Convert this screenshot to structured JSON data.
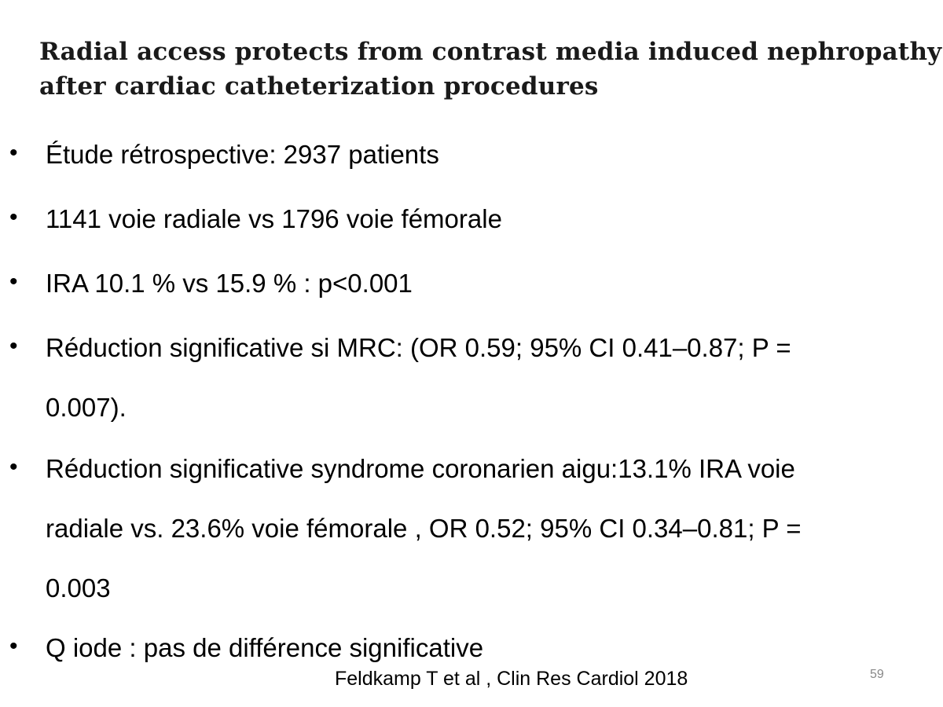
{
  "slide": {
    "title_lines": [
      "Radial access protects from contrast media induced nephropathy",
      "after cardiac catheterization procedures"
    ],
    "bullet_symbol": "•",
    "bullets": [
      {
        "lines": [
          "Étude rétrospective: 2937 patients"
        ]
      },
      {
        "lines": [
          "1141 voie radiale vs 1796 voie fémorale"
        ]
      },
      {
        "lines": [
          "IRA 10.1 % vs 15.9 % : p<0.001"
        ]
      },
      {
        "lines": [
          "Réduction significative si MRC: (OR 0.59; 95% CI 0.41–0.87; P =",
          "0.007)."
        ]
      },
      {
        "lines": [
          "Réduction significative syndrome coronarien aigu:13.1% IRA  voie",
          "radiale  vs. 23.6%  voie  fémorale , OR 0.52; 95% CI 0.34–0.81; P =",
          "0.003"
        ]
      },
      {
        "lines": [
          "Q iode : pas de différence significative"
        ]
      }
    ],
    "citation": "Feldkamp T et al , Clin Res Cardiol 2018",
    "page_number": "59"
  }
}
